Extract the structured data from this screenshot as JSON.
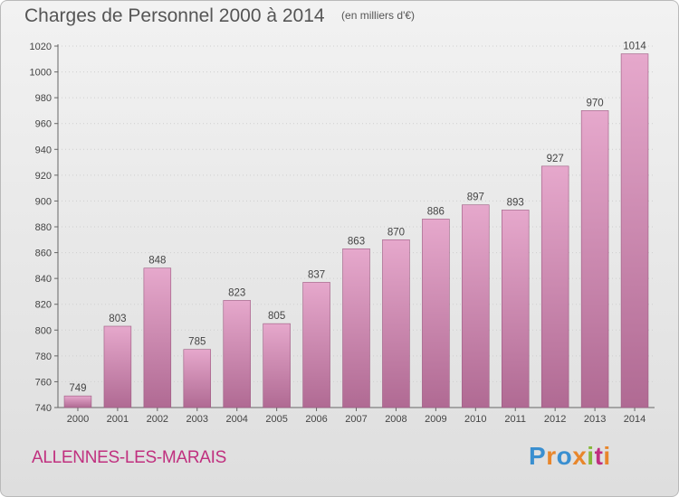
{
  "header": {
    "title": "Charges de Personnel 2000 à 2014",
    "unit": "(en milliers d'€)"
  },
  "footer": {
    "commune": "ALLENNES-LES-MARAIS",
    "logo": {
      "text": "Proxiti",
      "colors": [
        "#3a8fd0",
        "#e8862b",
        "#3a8fd0",
        "#e8862b",
        "#86b83a",
        "#c0307f",
        "#e8862b"
      ]
    }
  },
  "chart_data": {
    "type": "bar",
    "title": "Charges de Personnel 2000 à 2014",
    "subtitle": "(en milliers d'€)",
    "xlabel": "",
    "ylabel": "",
    "categories": [
      "2000",
      "2001",
      "2002",
      "2003",
      "2004",
      "2005",
      "2006",
      "2007",
      "2008",
      "2009",
      "2010",
      "2011",
      "2012",
      "2013",
      "2014"
    ],
    "values": [
      749,
      803,
      848,
      785,
      823,
      805,
      837,
      863,
      870,
      886,
      897,
      893,
      927,
      970,
      1014
    ],
    "ylim": [
      740,
      1020
    ],
    "yticks": [
      740,
      760,
      780,
      800,
      820,
      840,
      860,
      880,
      900,
      920,
      940,
      960,
      980,
      1000,
      1020
    ],
    "grid": true,
    "legend": "none",
    "bar_color_top": "#e6a8cc",
    "bar_color_bottom": "#b06a93",
    "bar_edge_color": "#9c5a80"
  }
}
